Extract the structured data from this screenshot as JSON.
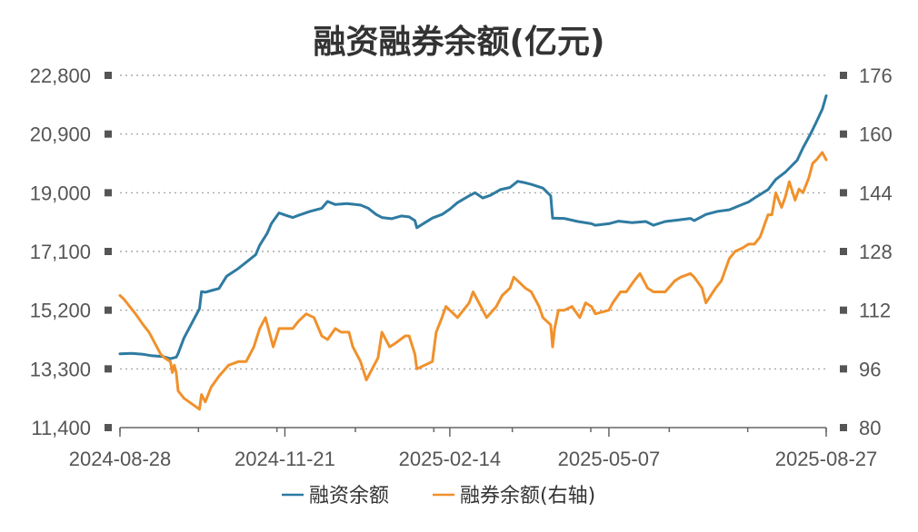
{
  "chart_data": {
    "type": "line",
    "title": "融资融券余额(亿元)",
    "x_ticks": [
      "2024-08-28",
      "2024-11-21",
      "2025-02-14",
      "2025-05-07",
      "2025-08-27"
    ],
    "y_left": {
      "ticks": [
        "11,400",
        "13,300",
        "15,200",
        "17,100",
        "19,000",
        "20,900",
        "22,800"
      ],
      "ylim": [
        11400,
        22800
      ]
    },
    "y_right": {
      "ticks": [
        "80",
        "96",
        "112",
        "128",
        "144",
        "160",
        "176"
      ],
      "ylim": [
        80,
        176
      ]
    },
    "grid": true,
    "legend_position": "bottom",
    "colors": {
      "financing": "#2e7ba1",
      "securities_lending": "#f0912c"
    },
    "series": [
      {
        "name": "融资余额",
        "axis": "left",
        "points": [
          [
            "2024-08-28",
            13790
          ],
          [
            "2024-09-03",
            13800
          ],
          [
            "2024-09-09",
            13770
          ],
          [
            "2024-09-13",
            13730
          ],
          [
            "2024-09-19",
            13700
          ],
          [
            "2024-09-23",
            13630
          ],
          [
            "2024-09-26",
            13680
          ],
          [
            "2024-09-27",
            13800
          ],
          [
            "2024-09-30",
            14300
          ],
          [
            "2024-10-08",
            15250
          ],
          [
            "2024-10-09",
            15800
          ],
          [
            "2024-10-11",
            15780
          ],
          [
            "2024-10-15",
            15850
          ],
          [
            "2024-10-18",
            15900
          ],
          [
            "2024-10-22",
            16300
          ],
          [
            "2024-10-28",
            16550
          ],
          [
            "2024-11-01",
            16750
          ],
          [
            "2024-11-06",
            17000
          ],
          [
            "2024-11-08",
            17300
          ],
          [
            "2024-11-12",
            17700
          ],
          [
            "2024-11-14",
            18000
          ],
          [
            "2024-11-18",
            18350
          ],
          [
            "2024-11-21",
            18280
          ],
          [
            "2024-11-25",
            18200
          ],
          [
            "2024-11-28",
            18270
          ],
          [
            "2024-12-04",
            18400
          ],
          [
            "2024-12-10",
            18500
          ],
          [
            "2024-12-13",
            18720
          ],
          [
            "2024-12-17",
            18620
          ],
          [
            "2024-12-23",
            18650
          ],
          [
            "2024-12-30",
            18600
          ],
          [
            "2025-01-03",
            18500
          ],
          [
            "2025-01-07",
            18300
          ],
          [
            "2025-01-10",
            18200
          ],
          [
            "2025-01-15",
            18160
          ],
          [
            "2025-01-20",
            18250
          ],
          [
            "2025-01-24",
            18220
          ],
          [
            "2025-01-27",
            18100
          ],
          [
            "2025-01-28",
            17870
          ],
          [
            "2025-02-05",
            18180
          ],
          [
            "2025-02-10",
            18300
          ],
          [
            "2025-02-14",
            18470
          ],
          [
            "2025-02-18",
            18680
          ],
          [
            "2025-02-24",
            18900
          ],
          [
            "2025-02-27",
            19000
          ],
          [
            "2025-03-03",
            18830
          ],
          [
            "2025-03-07",
            18920
          ],
          [
            "2025-03-12",
            19100
          ],
          [
            "2025-03-17",
            19170
          ],
          [
            "2025-03-21",
            19370
          ],
          [
            "2025-03-25",
            19320
          ],
          [
            "2025-03-28",
            19270
          ],
          [
            "2025-04-03",
            19150
          ],
          [
            "2025-04-07",
            18900
          ],
          [
            "2025-04-08",
            18180
          ],
          [
            "2025-04-14",
            18170
          ],
          [
            "2025-04-21",
            18070
          ],
          [
            "2025-04-28",
            18000
          ],
          [
            "2025-04-30",
            17950
          ],
          [
            "2025-05-07",
            18000
          ],
          [
            "2025-05-12",
            18080
          ],
          [
            "2025-05-19",
            18030
          ],
          [
            "2025-05-26",
            18070
          ],
          [
            "2025-05-30",
            17950
          ],
          [
            "2025-06-05",
            18070
          ],
          [
            "2025-06-12",
            18120
          ],
          [
            "2025-06-18",
            18170
          ],
          [
            "2025-06-20",
            18100
          ],
          [
            "2025-06-26",
            18300
          ],
          [
            "2025-07-02",
            18400
          ],
          [
            "2025-07-08",
            18450
          ],
          [
            "2025-07-14",
            18600
          ],
          [
            "2025-07-18",
            18700
          ],
          [
            "2025-07-22",
            18870
          ],
          [
            "2025-07-28",
            19100
          ],
          [
            "2025-08-01",
            19430
          ],
          [
            "2025-08-06",
            19670
          ],
          [
            "2025-08-12",
            20050
          ],
          [
            "2025-08-15",
            20450
          ],
          [
            "2025-08-19",
            20910
          ],
          [
            "2025-08-22",
            21300
          ],
          [
            "2025-08-25",
            21700
          ],
          [
            "2025-08-27",
            22140
          ]
        ]
      },
      {
        "name": "融券余额(右轴)",
        "axis": "right",
        "points": [
          [
            "2024-08-28",
            116
          ],
          [
            "2024-08-30",
            115
          ],
          [
            "2024-09-02",
            113
          ],
          [
            "2024-09-05",
            111
          ],
          [
            "2024-09-09",
            108
          ],
          [
            "2024-09-12",
            106
          ],
          [
            "2024-09-18",
            100
          ],
          [
            "2024-09-20",
            99
          ],
          [
            "2024-09-23",
            98
          ],
          [
            "2024-09-24",
            95
          ],
          [
            "2024-09-25",
            97
          ],
          [
            "2024-09-26",
            95
          ],
          [
            "2024-09-27",
            90
          ],
          [
            "2024-09-30",
            88
          ],
          [
            "2024-10-08",
            85
          ],
          [
            "2024-10-09",
            89
          ],
          [
            "2024-10-11",
            87
          ],
          [
            "2024-10-14",
            91
          ],
          [
            "2024-10-18",
            94
          ],
          [
            "2024-10-23",
            97
          ],
          [
            "2024-10-28",
            98
          ],
          [
            "2024-11-01",
            98
          ],
          [
            "2024-11-05",
            102
          ],
          [
            "2024-11-08",
            107
          ],
          [
            "2024-11-11",
            110
          ],
          [
            "2024-11-14",
            104
          ],
          [
            "2024-11-15",
            102
          ],
          [
            "2024-11-18",
            107
          ],
          [
            "2024-11-21",
            107
          ],
          [
            "2024-11-25",
            107
          ],
          [
            "2024-11-28",
            109
          ],
          [
            "2024-12-02",
            111
          ],
          [
            "2024-12-06",
            110
          ],
          [
            "2024-12-10",
            105
          ],
          [
            "2024-12-13",
            104
          ],
          [
            "2024-12-17",
            107
          ],
          [
            "2024-12-20",
            106
          ],
          [
            "2024-12-24",
            106
          ],
          [
            "2024-12-26",
            102
          ],
          [
            "2024-12-30",
            98
          ],
          [
            "2025-01-02",
            93
          ],
          [
            "2025-01-06",
            97
          ],
          [
            "2025-01-08",
            99
          ],
          [
            "2025-01-10",
            106
          ],
          [
            "2025-01-14",
            102
          ],
          [
            "2025-01-17",
            103
          ],
          [
            "2025-01-22",
            105
          ],
          [
            "2025-01-24",
            105
          ],
          [
            "2025-01-27",
            100
          ],
          [
            "2025-01-28",
            96
          ],
          [
            "2025-02-05",
            98
          ],
          [
            "2025-02-07",
            106
          ],
          [
            "2025-02-10",
            110
          ],
          [
            "2025-02-12",
            113
          ],
          [
            "2025-02-14",
            112
          ],
          [
            "2025-02-18",
            110
          ],
          [
            "2025-02-24",
            114
          ],
          [
            "2025-02-26",
            117
          ],
          [
            "2025-03-03",
            112
          ],
          [
            "2025-03-05",
            110
          ],
          [
            "2025-03-10",
            113
          ],
          [
            "2025-03-13",
            116
          ],
          [
            "2025-03-17",
            118
          ],
          [
            "2025-03-19",
            121
          ],
          [
            "2025-03-21",
            120
          ],
          [
            "2025-03-25",
            118
          ],
          [
            "2025-03-28",
            117
          ],
          [
            "2025-04-01",
            113
          ],
          [
            "2025-04-03",
            110
          ],
          [
            "2025-04-07",
            108
          ],
          [
            "2025-04-08",
            102
          ],
          [
            "2025-04-09",
            107
          ],
          [
            "2025-04-11",
            112
          ],
          [
            "2025-04-14",
            112
          ],
          [
            "2025-04-18",
            113
          ],
          [
            "2025-04-22",
            110
          ],
          [
            "2025-04-25",
            114
          ],
          [
            "2025-04-28",
            113
          ],
          [
            "2025-04-30",
            111
          ],
          [
            "2025-05-07",
            112
          ],
          [
            "2025-05-09",
            114
          ],
          [
            "2025-05-13",
            117
          ],
          [
            "2025-05-16",
            117
          ],
          [
            "2025-05-20",
            120
          ],
          [
            "2025-05-23",
            122
          ],
          [
            "2025-05-27",
            118
          ],
          [
            "2025-05-30",
            117
          ],
          [
            "2025-06-05",
            117
          ],
          [
            "2025-06-10",
            120
          ],
          [
            "2025-06-13",
            121
          ],
          [
            "2025-06-18",
            122
          ],
          [
            "2025-06-20",
            121
          ],
          [
            "2025-06-24",
            118
          ],
          [
            "2025-06-26",
            114
          ],
          [
            "2025-07-01",
            118
          ],
          [
            "2025-07-04",
            120
          ],
          [
            "2025-07-08",
            126
          ],
          [
            "2025-07-11",
            128
          ],
          [
            "2025-07-15",
            129
          ],
          [
            "2025-07-18",
            130
          ],
          [
            "2025-07-21",
            130
          ],
          [
            "2025-07-24",
            132
          ],
          [
            "2025-07-28",
            138
          ],
          [
            "2025-07-30",
            138
          ],
          [
            "2025-08-01",
            144
          ],
          [
            "2025-08-04",
            140
          ],
          [
            "2025-08-06",
            143
          ],
          [
            "2025-08-08",
            147
          ],
          [
            "2025-08-11",
            142
          ],
          [
            "2025-08-13",
            145
          ],
          [
            "2025-08-15",
            144
          ],
          [
            "2025-08-18",
            148
          ],
          [
            "2025-08-20",
            152
          ],
          [
            "2025-08-22",
            153
          ],
          [
            "2025-08-25",
            155
          ],
          [
            "2025-08-27",
            153
          ]
        ]
      }
    ]
  }
}
